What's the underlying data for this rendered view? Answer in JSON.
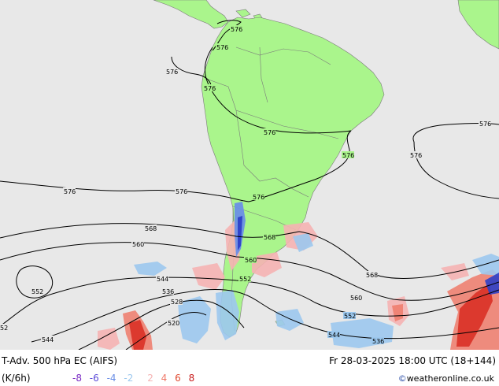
{
  "map": {
    "ocean_color": "#e8e8e8",
    "land_color": "#aaf58c",
    "contour_labels": {
      "l576": "576",
      "l568": "568",
      "l560": "560",
      "l552": "552",
      "l544": "544",
      "l536": "536",
      "l528": "528",
      "l520": "520",
      "l52": "52"
    }
  },
  "footer": {
    "title": "T-Adv. 500 hPa  EC (AIFS)",
    "valid_time": "Fr 28-03-2025 18:00 UTC (18+144)",
    "units": "(K/6h)",
    "legend": [
      {
        "label": "-8",
        "color": "#7b2cc4"
      },
      {
        "label": "-6",
        "color": "#5a4ad8"
      },
      {
        "label": "-4",
        "color": "#6a8ee6"
      },
      {
        "label": "-2",
        "color": "#9cc8ee"
      },
      {
        "label": "2",
        "color": "#f5b3b3"
      },
      {
        "label": "4",
        "color": "#ef7a6a"
      },
      {
        "label": "6",
        "color": "#e04a30"
      },
      {
        "label": "8",
        "color": "#c81e1e"
      }
    ],
    "credit_symbol": "©",
    "credit_text": "weatheronline.co.uk"
  }
}
